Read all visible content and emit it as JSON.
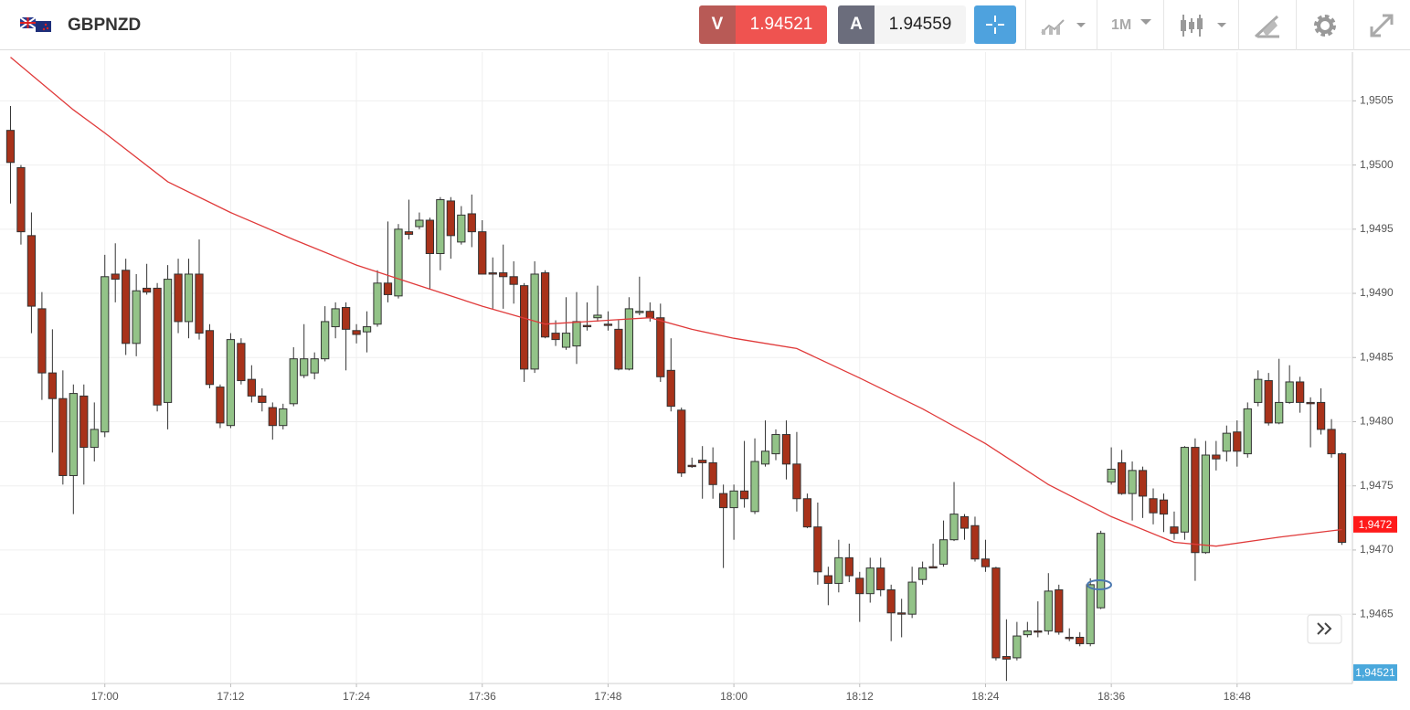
{
  "toolbar": {
    "symbol": "GBPNZD",
    "sell_label": "V",
    "sell_price": 1.94521,
    "buy_label": "A",
    "buy_price": 1.94559,
    "timeframe": "1M"
  },
  "chart_data": {
    "type": "candlestick",
    "x": [
      "16:51",
      "16:52",
      "16:53",
      "16:54",
      "16:55",
      "16:56",
      "16:57",
      "16:58",
      "16:59",
      "17:00",
      "17:01",
      "17:02",
      "17:03",
      "17:04",
      "17:05",
      "17:06",
      "17:07",
      "17:08",
      "17:09",
      "17:10",
      "17:11",
      "17:12",
      "17:13",
      "17:14",
      "17:15",
      "17:16",
      "17:17",
      "17:18",
      "17:19",
      "17:20",
      "17:21",
      "17:22",
      "17:23",
      "17:24",
      "17:25",
      "17:26",
      "17:27",
      "17:28",
      "17:29",
      "17:30",
      "17:31",
      "17:32",
      "17:33",
      "17:34",
      "17:35",
      "17:36",
      "17:37",
      "17:38",
      "17:39",
      "17:40",
      "17:41",
      "17:42",
      "17:43",
      "17:44",
      "17:45",
      "17:46",
      "17:47",
      "17:48",
      "17:49",
      "17:50",
      "17:51",
      "17:52",
      "17:53",
      "17:54",
      "17:55",
      "17:56",
      "17:57",
      "17:58",
      "17:59",
      "18:00",
      "18:01",
      "18:02",
      "18:03",
      "18:04",
      "18:05",
      "18:06",
      "18:07",
      "18:08",
      "18:09",
      "18:10",
      "18:11",
      "18:12",
      "18:13",
      "18:14",
      "18:15",
      "18:16",
      "18:17",
      "18:18",
      "18:19",
      "18:20",
      "18:21",
      "18:22",
      "18:23",
      "18:24",
      "18:25",
      "18:26",
      "18:27",
      "18:28",
      "18:29",
      "18:30",
      "18:31",
      "18:32",
      "18:33",
      "18:34",
      "18:35",
      "18:36",
      "18:37",
      "18:38",
      "18:39",
      "18:40",
      "18:41",
      "18:42",
      "18:43",
      "18:44",
      "18:45",
      "18:46",
      "18:47",
      "18:48",
      "18:49",
      "18:50",
      "18:51",
      "18:52",
      "18:53",
      "18:54",
      "18:55",
      "18:56",
      "18:57",
      "18:58"
    ],
    "open": [
      1.95027,
      1.94998,
      1.94945,
      1.94888,
      1.94838,
      1.94818,
      1.94758,
      1.9482,
      1.9478,
      1.94792,
      1.94915,
      1.94918,
      1.94861,
      1.94904,
      1.94904,
      1.94815,
      1.94915,
      1.94878,
      1.94915,
      1.94871,
      1.94827,
      1.94797,
      1.94861,
      1.94833,
      1.9482,
      1.94811,
      1.94797,
      1.94814,
      1.94836,
      1.94838,
      1.94849,
      1.94874,
      1.94889,
      1.94871,
      1.9487,
      1.94876,
      1.94908,
      1.94898,
      1.94948,
      1.94952,
      1.94957,
      1.94931,
      1.94972,
      1.9494,
      1.94962,
      1.94948,
      1.94916,
      1.94916,
      1.94913,
      1.94906,
      1.94841,
      1.94916,
      1.94869,
      1.94858,
      1.94859,
      1.94875,
      1.94881,
      1.94876,
      1.94872,
      1.94841,
      1.94885,
      1.94886,
      1.94881,
      1.9484,
      1.94809,
      1.94766,
      1.9477,
      1.94768,
      1.94744,
      1.94733,
      1.94746,
      1.9473,
      1.94767,
      1.94775,
      1.9479,
      1.94767,
      1.9474,
      1.94718,
      1.9468,
      1.94674,
      1.94694,
      1.94678,
      1.94666,
      1.94686,
      1.94669,
      1.94651,
      1.9465,
      1.94677,
      1.94687,
      1.94689,
      1.94708,
      1.94726,
      1.94719,
      1.94693,
      1.94686,
      1.94617,
      1.94616,
      1.94634,
      1.94637,
      1.94637,
      1.94669,
      1.94632,
      1.94632,
      1.94627,
      1.94655,
      1.94753,
      1.94768,
      1.94744,
      1.94762,
      1.9474,
      1.94739,
      1.94718,
      1.94714,
      1.9478,
      1.94698,
      1.94774,
      1.94777,
      1.94792,
      1.94775,
      1.94815,
      1.94832,
      1.94799,
      1.94815,
      1.94831,
      1.94815,
      1.94815,
      1.94794,
      1.94775
    ],
    "high": [
      1.95046,
      1.95,
      1.94963,
      1.94901,
      1.94872,
      1.9484,
      1.94829,
      1.94829,
      1.94815,
      1.9493,
      1.94939,
      1.94927,
      1.94915,
      1.94923,
      1.94908,
      1.94922,
      1.94927,
      1.94927,
      1.94942,
      1.94876,
      1.94829,
      1.94869,
      1.94865,
      1.94844,
      1.94826,
      1.94815,
      1.94814,
      1.94858,
      1.94876,
      1.94854,
      1.9489,
      1.94893,
      1.94893,
      1.94876,
      1.94886,
      1.94918,
      1.94956,
      1.94954,
      1.94973,
      1.94963,
      1.94959,
      1.94975,
      1.94975,
      1.94968,
      1.94977,
      1.94957,
      1.94928,
      1.94938,
      1.94925,
      1.94908,
      1.94925,
      1.94918,
      1.94879,
      1.94897,
      1.94901,
      1.94893,
      1.94906,
      1.94886,
      1.94879,
      1.94897,
      1.94913,
      1.94893,
      1.94892,
      1.94865,
      1.94811,
      1.94772,
      1.94781,
      1.9478,
      1.94751,
      1.94751,
      1.94785,
      1.94787,
      1.94801,
      1.94794,
      1.94801,
      1.94792,
      1.94744,
      1.94737,
      1.94687,
      1.94708,
      1.94705,
      1.94683,
      1.94694,
      1.94694,
      1.94673,
      1.94662,
      1.94687,
      1.94691,
      1.94705,
      1.94723,
      1.94753,
      1.94728,
      1.94726,
      1.94708,
      1.94687,
      1.94646,
      1.94644,
      1.94644,
      1.9466,
      1.94682,
      1.94673,
      1.94639,
      1.94636,
      1.94678,
      1.94715,
      1.9478,
      1.94778,
      1.94769,
      1.94765,
      1.94748,
      1.94744,
      1.9473,
      1.94781,
      1.94787,
      1.94785,
      1.94785,
      1.94797,
      1.94801,
      1.94815,
      1.9484,
      1.94838,
      1.94849,
      1.94844,
      1.94835,
      1.94819,
      1.94826,
      1.94802,
      1.94776
    ],
    "low": [
      1.9497,
      1.94938,
      1.94869,
      1.94817,
      1.94776,
      1.94751,
      1.94728,
      1.94751,
      1.94769,
      1.94788,
      1.94893,
      1.94852,
      1.94851,
      1.94899,
      1.94808,
      1.94794,
      1.94869,
      1.94865,
      1.94864,
      1.94826,
      1.94795,
      1.94795,
      1.94829,
      1.94815,
      1.94808,
      1.94786,
      1.94794,
      1.94812,
      1.94834,
      1.94833,
      1.94847,
      1.94865,
      1.9484,
      1.94861,
      1.94854,
      1.94874,
      1.94893,
      1.94896,
      1.94942,
      1.9495,
      1.94903,
      1.94918,
      1.94927,
      1.94938,
      1.94936,
      1.94915,
      1.94888,
      1.94888,
      1.94892,
      1.94831,
      1.94838,
      1.94865,
      1.94859,
      1.94856,
      1.94845,
      1.94871,
      1.94878,
      1.94871,
      1.9484,
      1.9484,
      1.94883,
      1.94878,
      1.94831,
      1.94808,
      1.94757,
      1.94764,
      1.9474,
      1.9474,
      1.94686,
      1.94708,
      1.94733,
      1.94728,
      1.94765,
      1.9477,
      1.94755,
      1.9473,
      1.94717,
      1.94673,
      1.94657,
      1.94667,
      1.94675,
      1.94644,
      1.94659,
      1.94664,
      1.94629,
      1.94632,
      1.94647,
      1.94673,
      1.94686,
      1.94687,
      1.94707,
      1.94708,
      1.94691,
      1.94683,
      1.94614,
      1.94598,
      1.94614,
      1.94632,
      1.94632,
      1.94634,
      1.94634,
      1.94629,
      1.94625,
      1.94625,
      1.94654,
      1.94751,
      1.94743,
      1.94723,
      1.94725,
      1.9472,
      1.94714,
      1.94708,
      1.94708,
      1.94676,
      1.94697,
      1.94762,
      1.94769,
      1.94765,
      1.94772,
      1.94812,
      1.94797,
      1.94798,
      1.94814,
      1.94807,
      1.9478,
      1.9479,
      1.94772,
      1.94704
    ],
    "close": [
      1.95002,
      1.94948,
      1.9489,
      1.94838,
      1.94818,
      1.94758,
      1.94822,
      1.9478,
      1.94794,
      1.94913,
      1.94911,
      1.94861,
      1.94902,
      1.94901,
      1.94813,
      1.94911,
      1.94878,
      1.94915,
      1.94869,
      1.94829,
      1.94799,
      1.94864,
      1.94832,
      1.9482,
      1.94815,
      1.94797,
      1.9481,
      1.94849,
      1.94849,
      1.94849,
      1.94878,
      1.94888,
      1.94872,
      1.94868,
      1.94874,
      1.94908,
      1.94899,
      1.9495,
      1.94946,
      1.94957,
      1.94931,
      1.94973,
      1.94945,
      1.94961,
      1.94948,
      1.94915,
      1.94915,
      1.94913,
      1.94907,
      1.94841,
      1.94915,
      1.94866,
      1.94864,
      1.94869,
      1.94878,
      1.94874,
      1.94883,
      1.94875,
      1.94841,
      1.94888,
      1.94886,
      1.94881,
      1.94835,
      1.94812,
      1.9476,
      1.94765,
      1.94768,
      1.94751,
      1.94733,
      1.94746,
      1.9474,
      1.94769,
      1.94777,
      1.9479,
      1.94767,
      1.9474,
      1.94718,
      1.94683,
      1.94674,
      1.94694,
      1.9468,
      1.94666,
      1.94686,
      1.94669,
      1.94651,
      1.9465,
      1.94675,
      1.94686,
      1.94686,
      1.94708,
      1.94728,
      1.94717,
      1.94693,
      1.94687,
      1.94616,
      1.94615,
      1.94633,
      1.94637,
      1.94636,
      1.94668,
      1.94636,
      1.94631,
      1.94627,
      1.94673,
      1.94713,
      1.94763,
      1.94744,
      1.94762,
      1.94742,
      1.94729,
      1.94728,
      1.94713,
      1.9478,
      1.94698,
      1.94774,
      1.94771,
      1.94791,
      1.94777,
      1.9481,
      1.94833,
      1.94799,
      1.94815,
      1.94831,
      1.94815,
      1.94814,
      1.94794,
      1.94775,
      1.94706
    ],
    "up_color": "#93c388",
    "down_color": "#a8321a",
    "outline_color": "#333333",
    "moving_average": {
      "color": "#e03a3a",
      "x": [
        "16:51",
        "16:57",
        "17:00",
        "17:06",
        "17:12",
        "17:18",
        "17:24",
        "17:30",
        "17:36",
        "17:42",
        "17:48",
        "17:52",
        "17:56",
        "18:00",
        "18:06",
        "18:12",
        "18:18",
        "18:24",
        "18:30",
        "18:36",
        "18:42",
        "18:46",
        "18:52",
        "18:58"
      ],
      "values": [
        1.95084,
        1.95043,
        1.95025,
        1.94987,
        1.94963,
        1.94942,
        1.94922,
        1.94906,
        1.9489,
        1.94876,
        1.94879,
        1.94881,
        1.94872,
        1.94865,
        1.94857,
        1.94834,
        1.9481,
        1.94783,
        1.94751,
        1.94726,
        1.94706,
        1.94703,
        1.9471,
        1.94716
      ]
    },
    "price_tags": [
      {
        "value": 1.9472,
        "label": "1,9472",
        "color": "#ff1a1a"
      },
      {
        "value": 1.94521,
        "label": "1,94521",
        "color": "#4aa8dc"
      }
    ],
    "xlim": [
      "16:50",
      "18:59"
    ],
    "xticks": [
      "17:00",
      "17:12",
      "17:24",
      "17:36",
      "17:48",
      "18:00",
      "18:12",
      "18:24",
      "18:36",
      "18:48"
    ],
    "ylim": [
      1.94596,
      1.95088
    ],
    "yticks": [
      {
        "value": 1.9465,
        "label": "1,9465"
      },
      {
        "value": 1.947,
        "label": "1,9470"
      },
      {
        "value": 1.9475,
        "label": "1,9475"
      },
      {
        "value": 1.948,
        "label": "1,9480"
      },
      {
        "value": 1.9485,
        "label": "1,9485"
      },
      {
        "value": 1.949,
        "label": "1,9490"
      },
      {
        "value": 1.9495,
        "label": "1,9495"
      },
      {
        "value": 1.95,
        "label": "1,9500"
      },
      {
        "value": 1.9505,
        "label": "1,9505"
      }
    ],
    "grid": true
  }
}
